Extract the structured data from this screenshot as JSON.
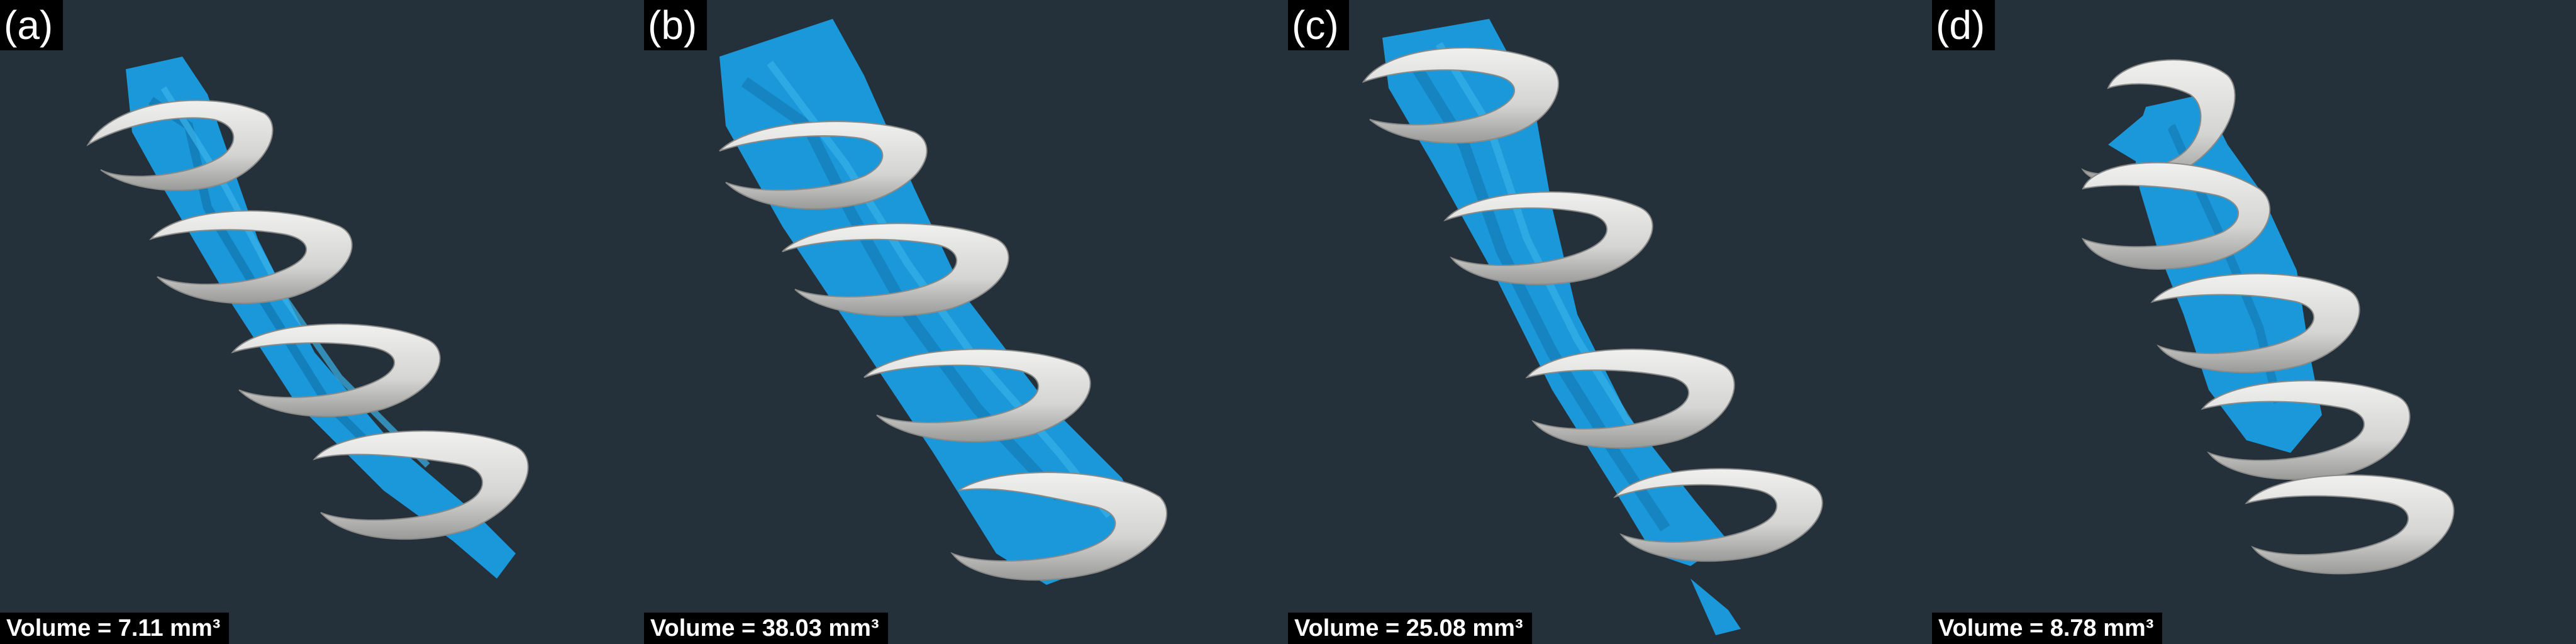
{
  "panels": [
    {
      "label": "(a)",
      "volume_text": "Volume = 7.11 mm³"
    },
    {
      "label": "(b)",
      "volume_text": "Volume = 38.03 mm³"
    },
    {
      "label": "(c)",
      "volume_text": "Volume = 25.08 mm³"
    },
    {
      "label": "(d)",
      "volume_text": "Volume = 8.78 mm³"
    }
  ],
  "colors": {
    "background": "#24303a",
    "deposit": "#1aa0e0",
    "coil": "#d8d8d6",
    "label_box": "#000000",
    "label_text": "#ffffff"
  }
}
